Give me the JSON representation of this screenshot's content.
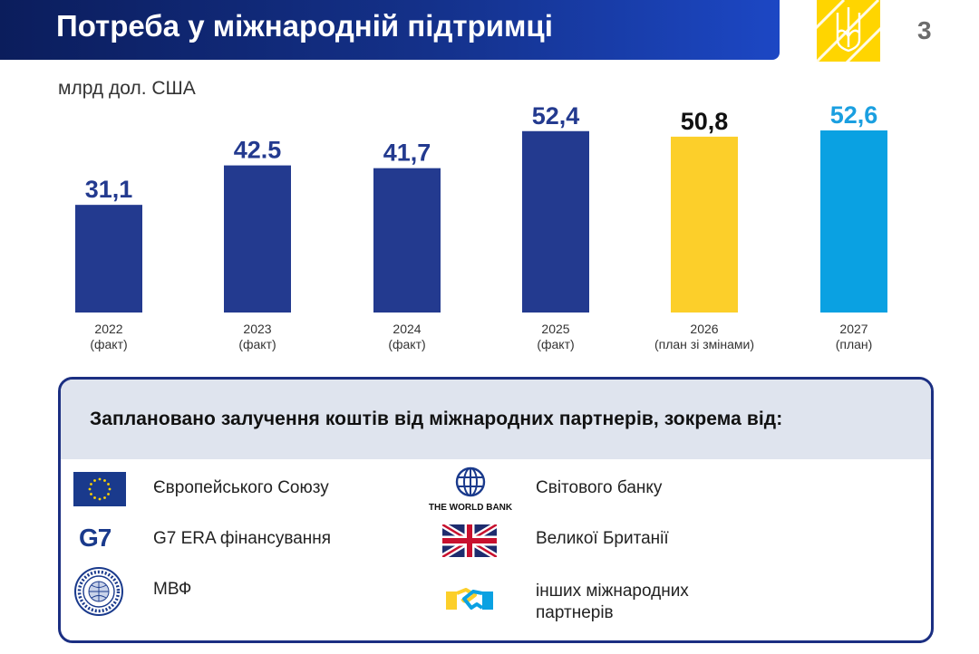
{
  "header": {
    "title": "Потреба у міжнародній підтримці",
    "page_number": "3"
  },
  "unit_label": "млрд дол. США",
  "chart_data": {
    "type": "bar",
    "categories": [
      "2022\n(факт)",
      "2023\n(факт)",
      "2024\n(факт)",
      "2025\n(факт)",
      "2026\n(план зі змінами)",
      "2027\n(план)"
    ],
    "category_lines": [
      [
        "2022",
        "(факт)"
      ],
      [
        "2023",
        "(факт)"
      ],
      [
        "2024",
        "(факт)"
      ],
      [
        "2025",
        "(факт)"
      ],
      [
        "2026",
        "(план зі змінами)"
      ],
      [
        "2027",
        "(план)"
      ]
    ],
    "values": [
      31.1,
      42.5,
      41.7,
      52.4,
      50.8,
      52.6
    ],
    "value_labels": [
      "31,1",
      "42.5",
      "41,7",
      "52,4",
      "50,8",
      "52,6"
    ],
    "bar_colors": [
      "#233a8f",
      "#233a8f",
      "#233a8f",
      "#233a8f",
      "#fccf2a",
      "#0aa1e2"
    ],
    "label_colors": [
      "#233a8f",
      "#233a8f",
      "#233a8f",
      "#233a8f",
      "#111111",
      "#1a9fe0"
    ],
    "ylim": [
      0,
      60
    ],
    "grid": false
  },
  "partners": {
    "heading": "Заплановано залучення коштів від  міжнародних партнерів, зокрема від:",
    "left": [
      {
        "icon": "eu-flag-icon",
        "label": "Європейського Союзу"
      },
      {
        "icon": "g7-logo-icon",
        "logo_text": "G7",
        "label": "G7 ERA фінансування"
      },
      {
        "icon": "imf-seal-icon",
        "label": "МВФ"
      }
    ],
    "right": [
      {
        "icon": "world-bank-logo-icon",
        "logo_text": "THE WORLD BANK",
        "label": "Світового банку"
      },
      {
        "icon": "uk-flag-icon",
        "label": "Великої Британії"
      },
      {
        "icon": "handshake-icon",
        "label_lines": [
          "інших міжнародних",
          "партнерів"
        ]
      }
    ]
  },
  "colors": {
    "navy": "#233a8f",
    "yellow": "#fccf2a",
    "cyan": "#0aa1e2",
    "box_border": "#1b2f82"
  }
}
